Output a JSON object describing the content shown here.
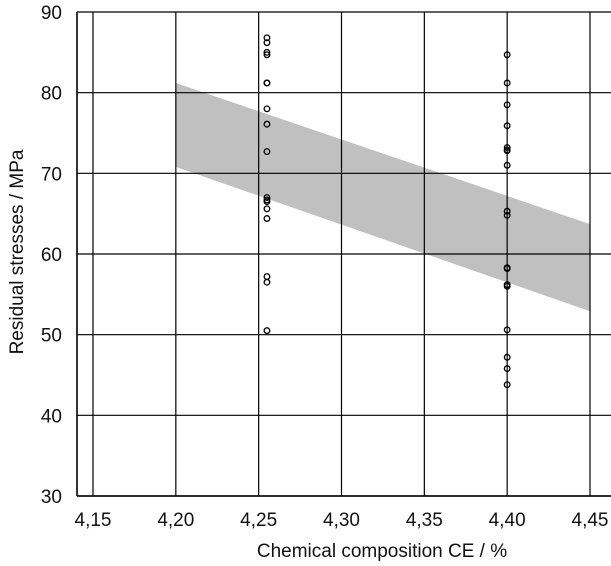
{
  "chart_data": {
    "type": "scatter",
    "xlabel": "Chemical composition CE / %",
    "ylabel": "Residual stresses / MPa",
    "xlim": [
      4.15,
      4.45
    ],
    "ylim": [
      30,
      90
    ],
    "x_ticks": [
      4.15,
      4.2,
      4.25,
      4.3,
      4.35,
      4.4,
      4.45
    ],
    "x_tick_labels": [
      "4,15",
      "4,20",
      "4,25",
      "4,30",
      "4,35",
      "4,40",
      "4,45"
    ],
    "y_ticks": [
      30,
      40,
      50,
      60,
      70,
      80,
      90
    ],
    "y_tick_labels": [
      "30",
      "40",
      "50",
      "60",
      "70",
      "80",
      "90"
    ],
    "grid": true,
    "band": {
      "x": [
        4.2,
        4.45
      ],
      "upper": [
        81.2,
        63.7
      ],
      "lower": [
        70.8,
        52.9
      ],
      "color": "#c0c0c0"
    },
    "series": [
      {
        "x": [
          4.255,
          4.255,
          4.255,
          4.255,
          4.255,
          4.255,
          4.255,
          4.255,
          4.255,
          4.255,
          4.255,
          4.255,
          4.255,
          4.255,
          4.255,
          4.255,
          4.255,
          4.4,
          4.4,
          4.4,
          4.4,
          4.4,
          4.4,
          4.4,
          4.4,
          4.4,
          4.4,
          4.4,
          4.4,
          4.4,
          4.4,
          4.4,
          4.4,
          4.4,
          4.4
        ],
        "y": [
          86.8,
          86.2,
          85.0,
          84.7,
          81.2,
          78.0,
          76.1,
          72.7,
          67.0,
          66.7,
          66.5,
          65.6,
          64.4,
          57.2,
          56.5,
          50.5,
          81.2,
          84.7,
          81.2,
          78.5,
          75.9,
          73.2,
          72.8,
          71.0,
          65.3,
          64.8,
          58.3,
          58.2,
          56.2,
          56.0,
          50.6,
          47.2,
          45.8,
          43.8,
          72.9
        ],
        "marker": "open-circle"
      }
    ]
  }
}
